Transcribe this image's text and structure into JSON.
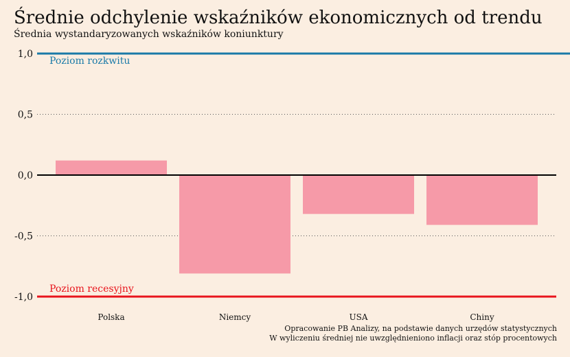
{
  "title": "Średnie odchylenie wskaźników ekonomicznych od trendu",
  "subtitle": "Średnia wystandaryzowanych wskaźników koniunktury",
  "colors": {
    "background": "#fbeee1",
    "bar": "#f69aa8",
    "upper_line": "#1a7aa8",
    "lower_line": "#e8141c",
    "zero_line": "#000000",
    "grid": "#555555"
  },
  "chart_data": {
    "type": "bar",
    "categories": [
      "Polska",
      "Niemcy",
      "USA",
      "Chiny"
    ],
    "values": [
      0.12,
      -0.81,
      -0.32,
      -0.41
    ],
    "ylim": [
      -1.0,
      1.0
    ],
    "yticks": [
      "1,0",
      "0,5",
      "0,0",
      "-0,5",
      "-1,0"
    ],
    "ytick_values": [
      1.0,
      0.5,
      0.0,
      -0.5,
      -1.0
    ],
    "grid": "dotted",
    "annotations": {
      "upper": {
        "label": "Poziom rozkwitu",
        "value": 1.0
      },
      "lower": {
        "label": "Poziom recesyjny",
        "value": -1.0
      }
    }
  },
  "source": {
    "line1": "Opracowanie PB Analizy, na podstawie danych urzędów statystycznych",
    "line2": "W wyliczeniu średniej nie uwzględnieniono inflacji oraz stóp procentowych"
  }
}
